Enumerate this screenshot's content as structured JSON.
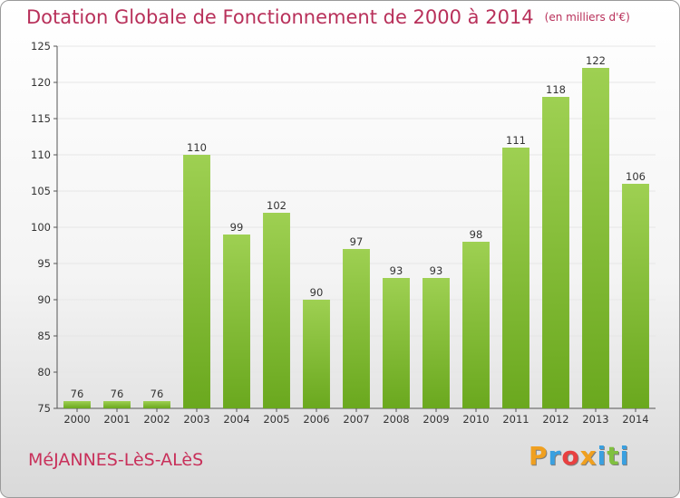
{
  "title": "Dotation Globale de Fonctionnement de 2000 à 2014",
  "unit_note": "(en milliers d'€)",
  "town": "MéJANNES-LèS-ALèS",
  "logo": {
    "letters": [
      "P",
      "r",
      "o",
      "x",
      "i",
      "t",
      "i"
    ],
    "colors": [
      "#f0a020",
      "#3aa0e0",
      "#e84040",
      "#f0a020",
      "#3aa0e0",
      "#80c040",
      "#3aa0e0"
    ]
  },
  "chart_data": {
    "type": "bar",
    "categories": [
      "2000",
      "2001",
      "2002",
      "2003",
      "2004",
      "2005",
      "2006",
      "2007",
      "2008",
      "2009",
      "2010",
      "2011",
      "2012",
      "2013",
      "2014"
    ],
    "values": [
      76,
      76,
      76,
      110,
      99,
      102,
      90,
      97,
      93,
      93,
      98,
      111,
      118,
      122,
      106
    ],
    "ylim": [
      75,
      125
    ],
    "yticks": [
      75,
      80,
      85,
      90,
      95,
      100,
      105,
      110,
      115,
      120,
      125
    ],
    "grid": true,
    "bar_color_top": "#9ed052",
    "bar_color_bottom": "#6aa81e",
    "grid_color": "#e6e6e6"
  }
}
